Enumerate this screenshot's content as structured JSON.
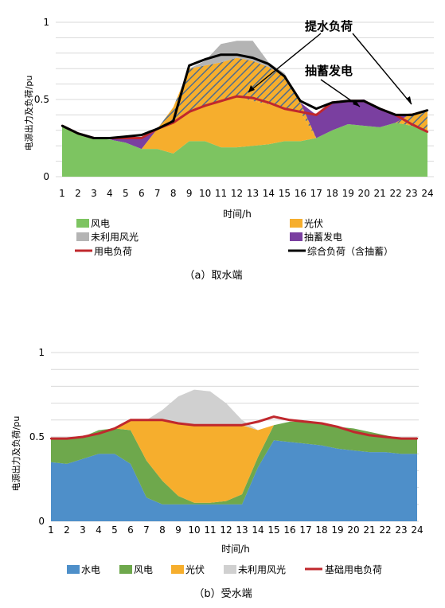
{
  "chart_data": [
    {
      "type": "area",
      "caption": "（a）取水端",
      "xlabel": "时间/h",
      "ylabel": "电源出力及负荷/pu",
      "ylim": [
        0,
        1
      ],
      "yticks": [
        "0",
        "0.5",
        "1"
      ],
      "grid": true,
      "legend_position": "bottom",
      "x": [
        1,
        2,
        3,
        4,
        5,
        6,
        7,
        8,
        9,
        10,
        11,
        12,
        13,
        14,
        15,
        16,
        17,
        18,
        19,
        20,
        21,
        22,
        23,
        24
      ],
      "x_labels": [
        "1",
        "2",
        "3",
        "4",
        "5",
        "6",
        "7",
        "8",
        "9",
        "10",
        "11",
        "12",
        "13",
        "14",
        "15",
        "16",
        "17",
        "18",
        "19",
        "20",
        "21",
        "22",
        "23",
        "24"
      ],
      "series": [
        {
          "name": "风电",
          "kind": "stack",
          "color": "#7dc461",
          "values": [
            0.33,
            0.28,
            0.25,
            0.24,
            0.22,
            0.18,
            0.18,
            0.15,
            0.23,
            0.23,
            0.19,
            0.19,
            0.2,
            0.21,
            0.23,
            0.23,
            0.25,
            0.3,
            0.34,
            0.33,
            0.32,
            0.35,
            0.33,
            0.29
          ]
        },
        {
          "name": "光伏",
          "kind": "stack",
          "color": "#f6ae2d",
          "values": [
            0,
            0,
            0,
            0,
            0,
            0,
            0.13,
            0.2,
            0.19,
            0.23,
            0.3,
            0.33,
            0.29,
            0.26,
            0.21,
            0.19,
            0,
            0,
            0,
            0,
            0,
            0,
            0,
            0
          ]
        },
        {
          "name": "提水负荷",
          "kind": "stack",
          "color": "#f6ae2d",
          "hatched": true,
          "values": [
            0,
            0,
            0,
            0,
            0,
            0,
            0,
            0.1,
            0.28,
            0.26,
            0.25,
            0.25,
            0.26,
            0.24,
            0.21,
            0.06,
            0,
            0,
            0,
            0,
            0,
            0,
            0.08,
            0.13
          ]
        },
        {
          "name": "未利用风光",
          "kind": "stack",
          "color": "#b4b4b4",
          "values": [
            0,
            0,
            0,
            0,
            0,
            0,
            0,
            0,
            0,
            0.03,
            0.12,
            0.11,
            0.13,
            0.03,
            0.02,
            0,
            0,
            0,
            0,
            0,
            0,
            0,
            0,
            0
          ]
        },
        {
          "name": "抽蓄发电",
          "kind": "stack",
          "color": "#7a3fa0",
          "values": [
            0,
            0,
            0,
            0,
            0.03,
            0.07,
            0,
            0,
            0,
            0,
            0,
            0,
            0,
            0,
            0,
            0,
            0.15,
            0.18,
            0.15,
            0.17,
            0.12,
            0.05,
            0,
            0
          ]
        },
        {
          "name": "用电负荷",
          "kind": "line",
          "color": "#c0282d",
          "values": [
            0.33,
            0.28,
            0.25,
            0.25,
            0.25,
            0.25,
            0.31,
            0.35,
            0.42,
            0.46,
            0.49,
            0.52,
            0.51,
            0.48,
            0.44,
            0.42,
            0.4,
            0.48,
            0.49,
            0.49,
            0.44,
            0.4,
            0.34,
            0.29
          ]
        },
        {
          "name": "综合负荷（含抽蓄）",
          "kind": "line",
          "color": "#000000",
          "values": [
            0.33,
            0.28,
            0.25,
            0.25,
            0.26,
            0.27,
            0.31,
            0.36,
            0.72,
            0.76,
            0.79,
            0.79,
            0.77,
            0.73,
            0.65,
            0.49,
            0.44,
            0.48,
            0.49,
            0.49,
            0.44,
            0.4,
            0.4,
            0.43
          ]
        }
      ],
      "legend": [
        "风电",
        "光伏",
        "未利用风光",
        "抽蓄发电",
        "用电负荷",
        "综合负荷（含抽蓄）"
      ],
      "annotations": [
        "提水负荷",
        "抽蓄发电"
      ]
    },
    {
      "type": "area",
      "caption": "（b）受水端",
      "xlabel": "时间/h",
      "ylabel": "电源出力及负荷/pu",
      "ylim": [
        0,
        1
      ],
      "yticks": [
        "0",
        "0.5",
        "1"
      ],
      "grid": true,
      "legend_position": "bottom",
      "x": [
        1,
        2,
        3,
        4,
        5,
        6,
        7,
        8,
        9,
        10,
        11,
        12,
        13,
        14,
        15,
        16,
        17,
        18,
        19,
        20,
        21,
        22,
        23,
        24
      ],
      "x_labels": [
        "1",
        "2",
        "3",
        "4",
        "5",
        "6",
        "7",
        "8",
        "9",
        "10",
        "11",
        "12",
        "13",
        "14",
        "15",
        "16",
        "17",
        "18",
        "19",
        "20",
        "21",
        "22",
        "23",
        "24"
      ],
      "series": [
        {
          "name": "水电",
          "kind": "stack",
          "color": "#4e8fc9",
          "values": [
            0.35,
            0.34,
            0.37,
            0.4,
            0.4,
            0.34,
            0.14,
            0.1,
            0.1,
            0.1,
            0.1,
            0.1,
            0.1,
            0.32,
            0.48,
            0.47,
            0.46,
            0.45,
            0.43,
            0.42,
            0.41,
            0.41,
            0.4,
            0.4
          ]
        },
        {
          "name": "风电",
          "kind": "stack",
          "color": "#6ea84c",
          "values": [
            0.14,
            0.15,
            0.13,
            0.14,
            0.15,
            0.2,
            0.22,
            0.14,
            0.05,
            0.01,
            0.01,
            0.02,
            0.06,
            0.06,
            0.09,
            0.12,
            0.13,
            0.13,
            0.13,
            0.13,
            0.12,
            0.1,
            0.09,
            0.09
          ]
        },
        {
          "name": "光伏",
          "kind": "stack",
          "color": "#f6ae2d",
          "values": [
            0,
            0,
            0,
            0,
            0,
            0.06,
            0.24,
            0.36,
            0.43,
            0.46,
            0.46,
            0.45,
            0.41,
            0.16,
            0,
            0,
            0,
            0,
            0,
            0,
            0,
            0,
            0,
            0
          ]
        },
        {
          "name": "未利用风光",
          "kind": "stack",
          "color": "#d0d0d0",
          "values": [
            0,
            0,
            0,
            0,
            0,
            0,
            0,
            0.06,
            0.16,
            0.21,
            0.2,
            0.13,
            0.03,
            0,
            0,
            0,
            0,
            0,
            0,
            0,
            0,
            0,
            0,
            0
          ]
        },
        {
          "name": "基础用电负荷",
          "kind": "line",
          "color": "#c0282d",
          "values": [
            0.49,
            0.49,
            0.5,
            0.52,
            0.55,
            0.6,
            0.6,
            0.6,
            0.58,
            0.57,
            0.57,
            0.57,
            0.57,
            0.59,
            0.62,
            0.6,
            0.59,
            0.58,
            0.56,
            0.53,
            0.51,
            0.5,
            0.49,
            0.49
          ]
        }
      ],
      "legend": [
        "水电",
        "风电",
        "光伏",
        "未利用风光",
        "基础用电负荷"
      ]
    }
  ]
}
